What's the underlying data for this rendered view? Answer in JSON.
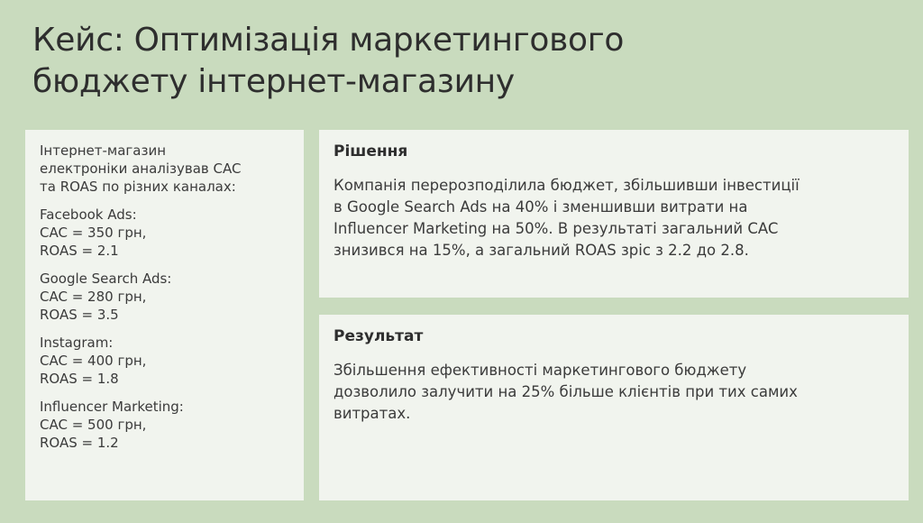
{
  "title": [
    "Кейс: Оптимізація маркетингового",
    "бюджету інтернет-магазину"
  ],
  "intro": [
    "Інтернет-магазин",
    "електроніки аналізував CAC",
    "та ROAS по різних каналах:"
  ],
  "channels": [
    {
      "name": "Facebook Ads:",
      "cac": "CAC = 350 грн,",
      "roas": "ROAS = 2.1"
    },
    {
      "name": "Google Search Ads:",
      "cac": "CAC = 280 грн,",
      "roas": "ROAS = 3.5"
    },
    {
      "name": "Instagram:",
      "cac": "CAC = 400 грн,",
      "roas": "ROAS = 1.8"
    },
    {
      "name": "Influencer Marketing:",
      "cac": "CAC = 500 грн,",
      "roas": "ROAS = 1.2"
    }
  ],
  "solution": {
    "heading": "Рішення",
    "lines": [
      "Компанія перерозподілила бюджет, збільшивши інвестиції",
      "в Google Search Ads на 40% і зменшивши витрати на",
      "Influencer Marketing на 50%. В результаті загальний CAC",
      "знизився на 15%, а загальний ROAS зріс з 2.2 до 2.8."
    ]
  },
  "result": {
    "heading": "Результат",
    "lines": [
      "Збільшення ефективності маркетингового бюджету",
      "дозволило залучити на 25% більше клієнтів при тих самих",
      "витратах."
    ]
  },
  "colors": {
    "background": "#c9dbbe",
    "card": "#f1f4ee",
    "text": "#3b3b3b"
  }
}
